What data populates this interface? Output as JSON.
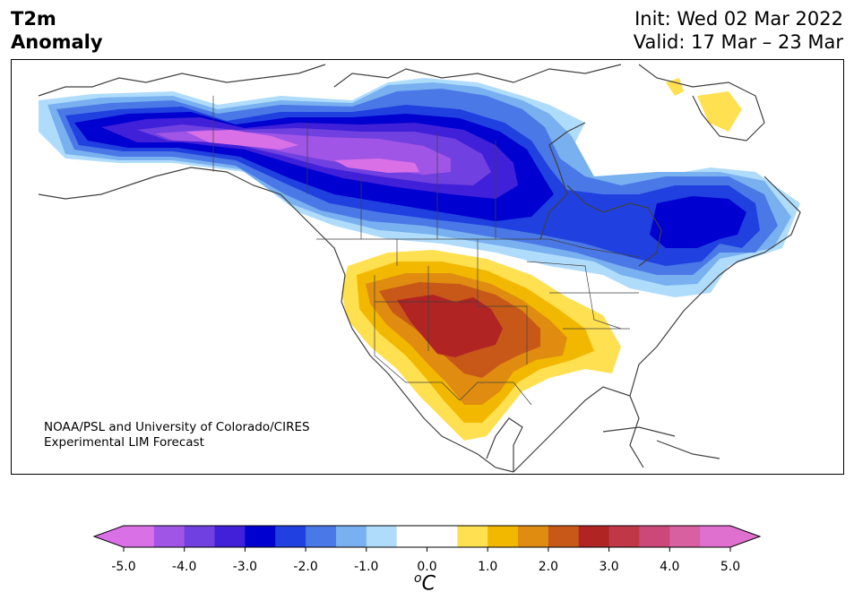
{
  "header": {
    "title_line1": "T2m",
    "title_line2": "Anomaly",
    "init": "Init: Wed 02 Mar 2022",
    "valid": "Valid: 17 Mar – 23 Mar"
  },
  "credit": {
    "line1": "NOAA/PSL and University of Colorado/CIRES",
    "line2": "Experimental LIM Forecast"
  },
  "colorbar": {
    "unit_base": "C",
    "unit_sup": "o",
    "colors": [
      "#da70e6",
      "#a055e6",
      "#7040e0",
      "#4020d8",
      "#0000d0",
      "#2040e0",
      "#4a78e6",
      "#78b0f0",
      "#b0dcfc",
      "#ffffff",
      "#ffffff",
      "#ffe050",
      "#f2b800",
      "#e08c10",
      "#c85818",
      "#b02424",
      "#c03848",
      "#cc4878",
      "#d860a0",
      "#e070d0"
    ],
    "ticks": [
      "-5.0",
      "-4.0",
      "-3.0",
      "-2.0",
      "-1.0",
      "0.0",
      "1.0",
      "2.0",
      "3.0",
      "4.0",
      "5.0"
    ],
    "extend_low_color": "#da70e6",
    "extend_high_color": "#e070d0"
  },
  "map": {
    "cold_levels": [
      "#b0dcfc",
      "#78b0f0",
      "#4a78e6",
      "#2040e0",
      "#0000d0",
      "#4020d8",
      "#7040e0",
      "#a055e6",
      "#da70e6"
    ],
    "warm_levels": [
      "#ffe050",
      "#f2b800",
      "#e08c10",
      "#c85818",
      "#b02424"
    ],
    "coast_color": "#404040"
  }
}
